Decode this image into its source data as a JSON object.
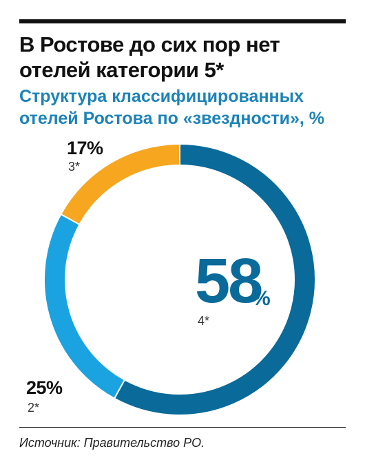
{
  "header": {
    "title": "В Ростове до сих пор нет отелей категории 5*",
    "subtitle": "Структура классифицированных отелей Ростова по «звездности», %"
  },
  "chart_data": {
    "type": "pie",
    "title": "В Ростове до сих пор нет отелей категории 5*",
    "subtitle": "Структура классифицированных отелей Ростова по «звездности», %",
    "unit": "%",
    "donut": true,
    "slices": [
      {
        "label": "4*",
        "value": 58,
        "value_text": "58",
        "color": "#0a6a9a"
      },
      {
        "label": "2*",
        "value": 25,
        "value_text": "25",
        "color": "#1aa3e0"
      },
      {
        "label": "3*",
        "value": 17,
        "value_text": "17",
        "color": "#f7a620"
      }
    ]
  },
  "source": "Источник: Правительство РО."
}
